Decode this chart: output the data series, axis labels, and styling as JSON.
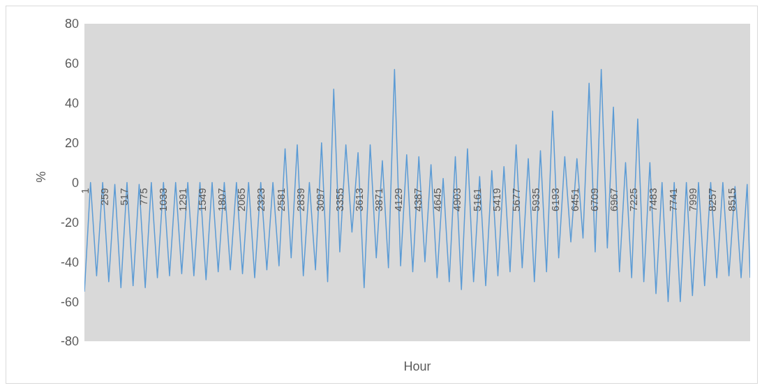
{
  "chart_data": {
    "type": "line",
    "xlabel": "Hour",
    "ylabel": "%",
    "x": [
      1,
      81,
      161,
      241,
      321,
      401,
      481,
      561,
      641,
      721,
      801,
      881,
      961,
      1041,
      1121,
      1201,
      1281,
      1361,
      1441,
      1521,
      1601,
      1681,
      1761,
      1841,
      1921,
      2001,
      2081,
      2161,
      2241,
      2321,
      2401,
      2481,
      2561,
      2641,
      2721,
      2801,
      2881,
      2961,
      3041,
      3121,
      3201,
      3281,
      3361,
      3441,
      3521,
      3601,
      3681,
      3761,
      3841,
      3921,
      4001,
      4081,
      4161,
      4241,
      4321,
      4401,
      4481,
      4561,
      4641,
      4721,
      4801,
      4881,
      4961,
      5041,
      5121,
      5201,
      5281,
      5361,
      5441,
      5521,
      5601,
      5681,
      5761,
      5841,
      5921,
      6001,
      6081,
      6161,
      6241,
      6321,
      6401,
      6481,
      6561,
      6641,
      6721,
      6801,
      6881,
      6961,
      7041,
      7121,
      7201,
      7281,
      7361,
      7441,
      7521,
      7601,
      7681,
      7761,
      7841,
      7921,
      8001,
      8081,
      8161,
      8241,
      8321,
      8401,
      8481,
      8561,
      8641,
      8721,
      8760
    ],
    "series": [
      {
        "color": "#5b9bd5",
        "values": [
          -55,
          0,
          -47,
          0,
          -50,
          -1,
          -53,
          0,
          -52,
          -1,
          -53,
          0,
          -48,
          0,
          -47,
          0,
          -46,
          0,
          -47,
          0,
          -49,
          0,
          -45,
          0,
          -44,
          0,
          -46,
          0,
          -48,
          0,
          -44,
          0,
          -42,
          17,
          -38,
          19,
          -47,
          0,
          -44,
          20,
          -50,
          47,
          -35,
          19,
          -25,
          15,
          -53,
          19,
          -38,
          11,
          -43,
          57,
          -42,
          14,
          -45,
          13,
          -40,
          9,
          -48,
          2,
          -50,
          13,
          -54,
          17,
          -50,
          3,
          -52,
          6,
          -47,
          8,
          -45,
          19,
          -43,
          12,
          -50,
          16,
          -45,
          36,
          -38,
          13,
          -30,
          12,
          -28,
          50,
          -35,
          57,
          -33,
          38,
          -45,
          10,
          -48,
          32,
          -50,
          10,
          -56,
          0,
          -60,
          0,
          -60,
          0,
          -57,
          0,
          -52,
          0,
          -48,
          0,
          -47,
          -2,
          -48,
          -1,
          -48
        ]
      }
    ],
    "xlim": [
      1,
      8760
    ],
    "xticks": [
      1,
      259,
      517,
      775,
      1033,
      1291,
      1549,
      1807,
      2065,
      2323,
      2581,
      2839,
      3097,
      3355,
      3613,
      3871,
      4129,
      4387,
      4645,
      4903,
      5161,
      5419,
      5677,
      5935,
      6193,
      6451,
      6709,
      6967,
      7225,
      7483,
      7741,
      7999,
      8257,
      8515
    ],
    "ylim": [
      -80,
      80
    ],
    "yticks": [
      -80,
      -60,
      -40,
      -20,
      0,
      20,
      40,
      60,
      80
    ],
    "grid": false,
    "legend": false,
    "marker": "none",
    "line_style": "solid"
  }
}
